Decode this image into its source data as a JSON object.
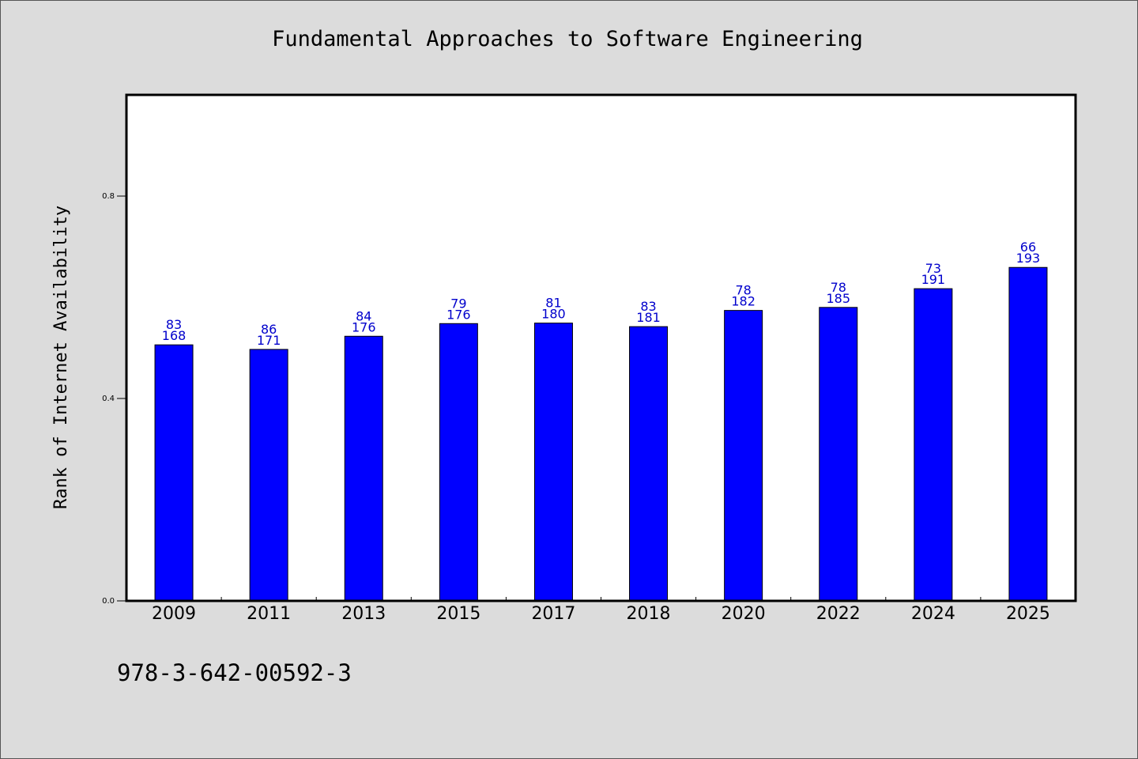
{
  "caption": "978-3-642-00592-3",
  "colors": {
    "background": "#dcdcdc",
    "plot_bg": "#ffffff",
    "bar": "#0000ff",
    "label": "#0000cc"
  },
  "chart_data": {
    "type": "bar",
    "title": "Fundamental Approaches to Software Engineering",
    "xlabel": "",
    "ylabel": "Rank of Internet Availability",
    "ylim": [
      0,
      1.0
    ],
    "yticks": [
      "0.0",
      "0.4",
      "0.8"
    ],
    "ytick_values": [
      0.0,
      0.4,
      0.8
    ],
    "grid": false,
    "categories": [
      "2009",
      "2011",
      "2013",
      "2015",
      "2017",
      "2018",
      "2020",
      "2022",
      "2024",
      "2025"
    ],
    "values": [
      0.506,
      0.497,
      0.523,
      0.548,
      0.549,
      0.542,
      0.574,
      0.58,
      0.617,
      0.659
    ],
    "label_top": [
      "83",
      "86",
      "84",
      "79",
      "81",
      "83",
      "78",
      "78",
      "73",
      "66"
    ],
    "label_bottom": [
      "168",
      "171",
      "176",
      "176",
      "180",
      "181",
      "182",
      "185",
      "191",
      "193"
    ]
  }
}
